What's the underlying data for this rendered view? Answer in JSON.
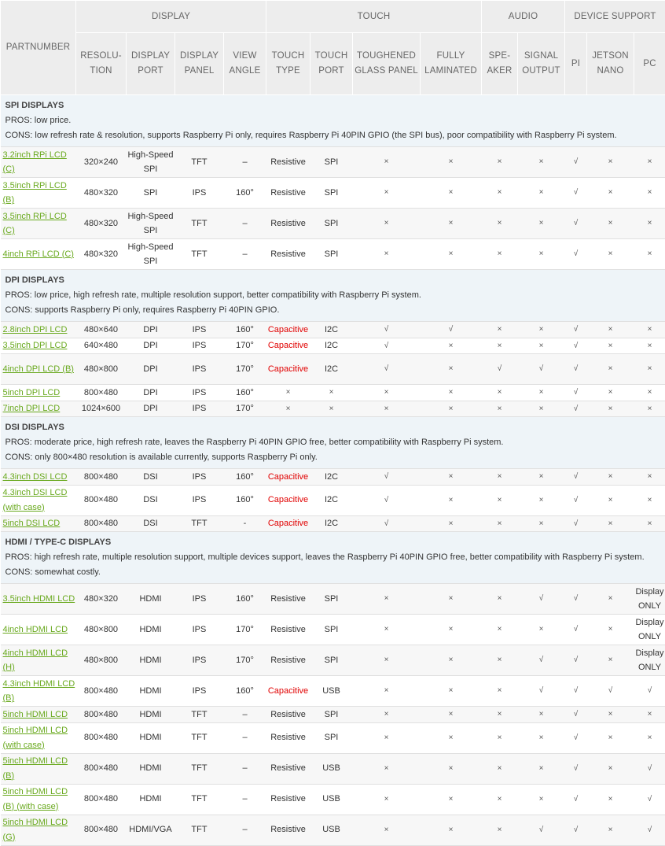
{
  "header": {
    "partnumber": "PARTNUMBER",
    "groups": [
      "DISPLAY",
      "TOUCH",
      "AUDIO",
      "DEVICE SUPPORT"
    ],
    "subs": [
      "RESOLU-TION",
      "DISPLAY PORT",
      "DISPLAY PANEL",
      "VIEW ANGLE",
      "TOUCH TYPE",
      "TOUCH PORT",
      "TOUGHENED GLASS PANEL",
      "FULLY LAMINATED",
      "SPE-AKER",
      "SIGNAL OUTPUT",
      "PI",
      "JETSON NANO",
      "PC"
    ]
  },
  "sections": [
    {
      "title": "SPI DISPLAYS",
      "pros": "PROS: low price.",
      "cons": "CONS: low refresh rate & resolution, supports Raspberry Pi only, requires Raspberry Pi 40PIN GPIO (the SPI bus), poor compatibility with Raspberry Pi system.",
      "rows": [
        {
          "part": "3.2inch RPi LCD (C)",
          "res": "320×240",
          "port": "High-Speed SPI",
          "panel": "TFT",
          "angle": "–",
          "ttype": "Resistive",
          "tport": "SPI",
          "glass": "×",
          "lam": "×",
          "spk": "×",
          "sig": "×",
          "pi": "√",
          "jet": "×",
          "pc": "×"
        },
        {
          "part": "3.5inch RPi LCD (B)",
          "res": "480×320",
          "port": "SPI",
          "panel": "IPS",
          "angle": "160°",
          "ttype": "Resistive",
          "tport": "SPI",
          "glass": "×",
          "lam": "×",
          "spk": "×",
          "sig": "×",
          "pi": "√",
          "jet": "×",
          "pc": "×"
        },
        {
          "part": "3.5inch RPi LCD (C)",
          "res": "480×320",
          "port": "High-Speed SPI",
          "panel": "TFT",
          "angle": "–",
          "ttype": "Resistive",
          "tport": "SPI",
          "glass": "×",
          "lam": "×",
          "spk": "×",
          "sig": "×",
          "pi": "√",
          "jet": "×",
          "pc": "×"
        },
        {
          "part": "4inch RPi LCD (C)",
          "res": "480×320",
          "port": "High-Speed SPI",
          "panel": "TFT",
          "angle": "–",
          "ttype": "Resistive",
          "tport": "SPI",
          "glass": "×",
          "lam": "×",
          "spk": "×",
          "sig": "×",
          "pi": "√",
          "jet": "×",
          "pc": "×"
        }
      ]
    },
    {
      "title": "DPI DISPLAYS",
      "pros": "PROS: low price, high refresh rate, multiple resolution support, better compatibility with Raspberry Pi system.",
      "cons": "CONS: supports Raspberry Pi only, requires Raspberry Pi 40PIN GPIO.",
      "rows": [
        {
          "part": "2.8inch DPI LCD",
          "res": "480×640",
          "port": "DPI",
          "panel": "IPS",
          "angle": "160°",
          "ttype": "Capacitive",
          "tport": "I2C",
          "glass": "√",
          "lam": "√",
          "spk": "×",
          "sig": "×",
          "pi": "√",
          "jet": "×",
          "pc": "×"
        },
        {
          "part": "3.5inch DPI LCD",
          "res": "640×480",
          "port": "DPI",
          "panel": "IPS",
          "angle": "170°",
          "ttype": "Capacitive",
          "tport": "I2C",
          "glass": "√",
          "lam": "×",
          "spk": "×",
          "sig": "×",
          "pi": "√",
          "jet": "×",
          "pc": "×"
        },
        {
          "part": "4inch DPI LCD (B)",
          "res": "480×800",
          "port": "DPI",
          "panel": "IPS",
          "angle": "170°",
          "ttype": "Capacitive",
          "tport": "I2C",
          "glass": "√",
          "lam": "×",
          "spk": "√",
          "sig": "√",
          "pi": "√",
          "jet": "×",
          "pc": "×"
        },
        {
          "part": "5inch DPI LCD",
          "res": "800×480",
          "port": "DPI",
          "panel": "IPS",
          "angle": "160°",
          "ttype": "×",
          "tport": "×",
          "glass": "×",
          "lam": "×",
          "spk": "×",
          "sig": "×",
          "pi": "√",
          "jet": "×",
          "pc": "×"
        },
        {
          "part": "7inch DPI LCD",
          "res": "1024×600",
          "port": "DPI",
          "panel": "IPS",
          "angle": "170°",
          "ttype": "×",
          "tport": "×",
          "glass": "×",
          "lam": "×",
          "spk": "×",
          "sig": "×",
          "pi": "√",
          "jet": "×",
          "pc": "×"
        }
      ]
    },
    {
      "title": "DSI DISPLAYS",
      "pros": "PROS: moderate price, high refresh rate, leaves the Raspberry Pi 40PIN GPIO free, better compatibility with Raspberry Pi system.",
      "cons": "CONS: only 800×480 resolution is available currently, supports Raspberry Pi only.",
      "rows": [
        {
          "part": "4.3inch DSI LCD",
          "res": "800×480",
          "port": "DSI",
          "panel": "IPS",
          "angle": "160°",
          "ttype": "Capacitive",
          "tport": "I2C",
          "glass": "√",
          "lam": "×",
          "spk": "×",
          "sig": "×",
          "pi": "√",
          "jet": "×",
          "pc": "×"
        },
        {
          "part": "4.3inch DSI LCD (with case)",
          "res": "800×480",
          "port": "DSI",
          "panel": "IPS",
          "angle": "160°",
          "ttype": "Capacitive",
          "tport": "I2C",
          "glass": "√",
          "lam": "×",
          "spk": "×",
          "sig": "×",
          "pi": "√",
          "jet": "×",
          "pc": "×"
        },
        {
          "part": "5inch DSI LCD",
          "res": "800×480",
          "port": "DSI",
          "panel": "TFT",
          "angle": "-",
          "ttype": "Capacitive",
          "tport": "I2C",
          "glass": "√",
          "lam": "×",
          "spk": "×",
          "sig": "×",
          "pi": "√",
          "jet": "×",
          "pc": "×"
        }
      ]
    },
    {
      "title": "HDMI / TYPE-C DISPLAYS",
      "pros": "PROS: high refresh rate, multiple resolution support, multiple devices support, leaves the Raspberry Pi 40PIN GPIO free, better compatibility with Raspberry Pi system.",
      "cons": "CONS: somewhat costly.",
      "rows": [
        {
          "part": "3.5inch HDMI LCD",
          "res": "480×320",
          "port": "HDMI",
          "panel": "IPS",
          "angle": "160°",
          "ttype": "Resistive",
          "tport": "SPI",
          "glass": "×",
          "lam": "×",
          "spk": "×",
          "sig": "√",
          "pi": "√",
          "jet": "×",
          "pc": "Display ONLY"
        },
        {
          "part": "4inch HDMI LCD",
          "res": "480×800",
          "port": "HDMI",
          "panel": "IPS",
          "angle": "170°",
          "ttype": "Resistive",
          "tport": "SPI",
          "glass": "×",
          "lam": "×",
          "spk": "×",
          "sig": "×",
          "pi": "√",
          "jet": "×",
          "pc": "Display ONLY"
        },
        {
          "part": "4inch HDMI LCD (H)",
          "res": "480×800",
          "port": "HDMI",
          "panel": "IPS",
          "angle": "170°",
          "ttype": "Resistive",
          "tport": "SPI",
          "glass": "×",
          "lam": "×",
          "spk": "×",
          "sig": "√",
          "pi": "√",
          "jet": "×",
          "pc": "Display ONLY"
        },
        {
          "part": "4.3inch HDMI LCD (B)",
          "res": "800×480",
          "port": "HDMI",
          "panel": "IPS",
          "angle": "160°",
          "ttype": "Capacitive",
          "tport": "USB",
          "glass": "×",
          "lam": "×",
          "spk": "×",
          "sig": "√",
          "pi": "√",
          "jet": "√",
          "pc": "√"
        },
        {
          "part": "5inch HDMI LCD",
          "res": "800×480",
          "port": "HDMI",
          "panel": "TFT",
          "angle": "–",
          "ttype": "Resistive",
          "tport": "SPI",
          "glass": "×",
          "lam": "×",
          "spk": "×",
          "sig": "×",
          "pi": "√",
          "jet": "×",
          "pc": "×"
        },
        {
          "part": "5inch HDMI LCD (with case)",
          "res": "800×480",
          "port": "HDMI",
          "panel": "TFT",
          "angle": "–",
          "ttype": "Resistive",
          "tport": "SPI",
          "glass": "×",
          "lam": "×",
          "spk": "×",
          "sig": "×",
          "pi": "√",
          "jet": "×",
          "pc": "×"
        },
        {
          "part": "5inch HDMI LCD (B)",
          "res": "800×480",
          "port": "HDMI",
          "panel": "TFT",
          "angle": "–",
          "ttype": "Resistive",
          "tport": "USB",
          "glass": "×",
          "lam": "×",
          "spk": "×",
          "sig": "×",
          "pi": "√",
          "jet": "×",
          "pc": "√"
        },
        {
          "part": "5inch HDMI LCD (B) (with case)",
          "res": "800×480",
          "port": "HDMI",
          "panel": "TFT",
          "angle": "–",
          "ttype": "Resistive",
          "tport": "USB",
          "glass": "×",
          "lam": "×",
          "spk": "×",
          "sig": "×",
          "pi": "√",
          "jet": "×",
          "pc": "√"
        },
        {
          "part": "5inch HDMI LCD (G)",
          "res": "800×480",
          "port": "HDMI/VGA",
          "panel": "TFT",
          "angle": "–",
          "ttype": "Resistive",
          "tport": "USB",
          "glass": "×",
          "lam": "×",
          "spk": "×",
          "sig": "√",
          "pi": "√",
          "jet": "×",
          "pc": "√"
        }
      ]
    }
  ]
}
